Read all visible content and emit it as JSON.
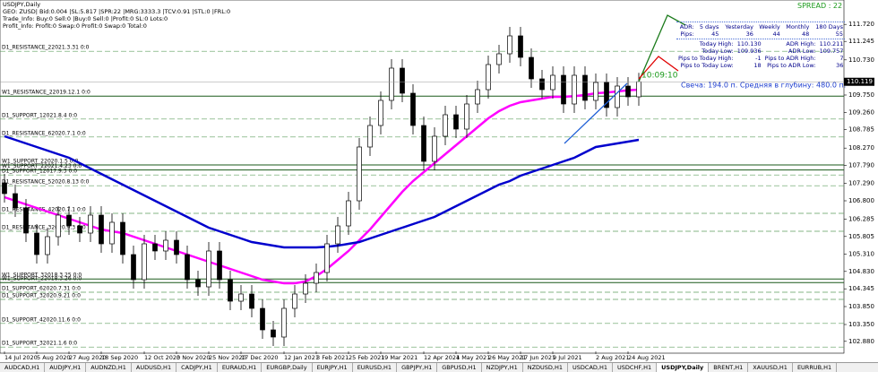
{
  "window_title": "USDJPY,Daily",
  "info_lines": [
    "GEO: ZUSD| Bid:0.004 |SL:5.817 |SPR:22 |MRG:3333.3 |TCV:0.91 |STL:0 |FRL:0",
    "Trade_Info: Buy:0 Sell:0 |Buy:0 Sell:0 |Profit:0 SL:0 Lots:0",
    "Profit_Info: Profit:0 Swap:0 Profit:0 Swap:0 Total:0"
  ],
  "spread": "SPREAD : 22",
  "adr_table": {
    "header": [
      "ADR:",
      "5 days",
      "Yesterday",
      "Weekly",
      "Monthly",
      "180 Days"
    ],
    "row": [
      "Pips:",
      "45",
      "36",
      "44",
      "48",
      "55"
    ]
  },
  "stats": [
    [
      "Today High:",
      "110.130",
      "ADR High:",
      "110.211"
    ],
    [
      "Today Low:",
      "109.936",
      "ADR Low:",
      "109.757"
    ],
    [
      "Pips to Today High:",
      "-1",
      "Pips to ADR High:",
      "7"
    ],
    [
      "Pips to Today Low:",
      "18",
      "Pips to ADR Low:",
      "36"
    ]
  ],
  "timer": "10:09:10",
  "candle_info": "Свеча: 194.0 п. Средняя в глубину: 480.0 п.",
  "chart_data": {
    "type": "candlestick",
    "categories": [
      "14 Jul 2020",
      null,
      null,
      "5 Aug 2020",
      null,
      null,
      "27 Aug 2020",
      null,
      null,
      "18 Sep 2020",
      null,
      null,
      null,
      "12 Oct 2020",
      null,
      null,
      "3 Nov 2020",
      null,
      null,
      "25 Nov 2020",
      null,
      null,
      "17 Dec 2020",
      null,
      null,
      null,
      "12 Jan 2021",
      null,
      null,
      "3 Feb 2021",
      null,
      null,
      "25 Feb 2021",
      null,
      null,
      "19 Mar 2021",
      null,
      null,
      null,
      "12 Apr 2021",
      null,
      null,
      "4 May 2021",
      null,
      null,
      "26 May 2021",
      null,
      null,
      "17 Jun 2021",
      null,
      null,
      "9 Jul 2021",
      null,
      null,
      null,
      "2 Aug 2021",
      null,
      null,
      "24 Aug 2021",
      null
    ],
    "open": [
      107.3,
      107.0,
      106.6,
      105.9,
      105.3,
      105.8,
      106.4,
      106.1,
      105.9,
      106.4,
      105.6,
      106.2,
      105.3,
      104.6,
      105.6,
      105.4,
      105.7,
      105.3,
      104.6,
      104.4,
      105.4,
      104.6,
      104.0,
      104.2,
      103.8,
      103.2,
      103.0,
      103.8,
      104.2,
      104.5,
      104.8,
      105.6,
      106.1,
      106.8,
      108.3,
      108.9,
      109.6,
      110.5,
      109.8,
      108.9,
      107.9,
      108.6,
      109.2,
      108.8,
      109.5,
      109.9,
      110.6,
      110.9,
      111.4,
      110.8,
      110.2,
      109.9,
      110.3,
      109.5,
      110.3,
      109.6,
      110.1,
      109.4,
      110.0,
      109.7
    ],
    "high": [
      107.55,
      107.25,
      106.85,
      106.15,
      106.05,
      106.65,
      106.65,
      106.35,
      106.65,
      106.65,
      106.45,
      106.45,
      105.55,
      105.85,
      105.85,
      105.95,
      105.95,
      105.55,
      104.85,
      105.65,
      105.65,
      104.85,
      104.45,
      104.45,
      104.05,
      103.45,
      104.05,
      104.45,
      104.75,
      105.05,
      105.85,
      106.35,
      107.05,
      108.55,
      109.15,
      109.85,
      110.75,
      110.75,
      110.05,
      109.15,
      108.85,
      109.45,
      109.45,
      109.75,
      110.15,
      110.85,
      111.15,
      111.65,
      111.65,
      111.05,
      110.45,
      110.55,
      110.55,
      110.55,
      110.55,
      110.35,
      110.35,
      110.25,
      110.25,
      110.37
    ],
    "low": [
      106.75,
      106.35,
      105.65,
      105.05,
      105.05,
      105.55,
      105.85,
      105.65,
      105.65,
      105.35,
      105.35,
      105.05,
      104.35,
      104.35,
      105.15,
      105.15,
      105.05,
      104.35,
      104.15,
      104.15,
      104.35,
      103.75,
      103.75,
      103.55,
      102.95,
      102.75,
      102.75,
      103.55,
      103.95,
      104.25,
      104.55,
      105.35,
      105.85,
      106.55,
      108.05,
      108.65,
      109.35,
      109.55,
      108.65,
      107.65,
      107.65,
      108.35,
      108.55,
      108.55,
      109.25,
      109.65,
      110.35,
      110.65,
      110.55,
      109.95,
      109.65,
      109.65,
      109.25,
      109.25,
      109.35,
      109.35,
      109.15,
      109.15,
      109.45,
      109.45
    ],
    "close": [
      107.0,
      106.6,
      105.9,
      105.3,
      105.8,
      106.4,
      106.1,
      105.9,
      106.4,
      105.6,
      106.2,
      105.3,
      104.6,
      105.6,
      105.4,
      105.7,
      105.3,
      104.6,
      104.4,
      105.4,
      104.6,
      104.0,
      104.2,
      103.8,
      103.2,
      103.0,
      103.8,
      104.2,
      104.5,
      104.8,
      105.6,
      106.1,
      106.8,
      108.3,
      108.9,
      109.6,
      110.5,
      109.8,
      108.9,
      107.9,
      108.6,
      109.2,
      108.8,
      109.5,
      109.9,
      110.6,
      110.9,
      111.4,
      110.8,
      110.2,
      109.9,
      110.3,
      109.5,
      110.3,
      109.6,
      110.1,
      109.4,
      110.0,
      109.7,
      110.12
    ],
    "series": [
      {
        "color": "#ff00ff",
        "values": [
          106.9,
          106.8,
          106.7,
          106.6,
          106.5,
          106.4,
          106.3,
          106.2,
          106.1,
          106.0,
          105.95,
          105.9,
          105.8,
          105.7,
          105.6,
          105.5,
          105.4,
          105.3,
          105.2,
          105.1,
          105.0,
          104.9,
          104.8,
          104.7,
          104.6,
          104.55,
          104.5,
          104.5,
          104.55,
          104.7,
          104.9,
          105.15,
          105.4,
          105.7,
          106.0,
          106.35,
          106.7,
          107.05,
          107.35,
          107.6,
          107.85,
          108.1,
          108.35,
          108.6,
          108.85,
          109.1,
          109.3,
          109.45,
          109.55,
          109.6,
          109.65,
          109.7,
          109.7,
          109.72,
          109.75,
          109.8,
          109.82,
          109.85,
          109.88,
          109.9
        ]
      },
      {
        "color": "#0000cd",
        "values": [
          108.6,
          108.5,
          108.4,
          108.3,
          108.2,
          108.1,
          108.0,
          107.85,
          107.7,
          107.55,
          107.4,
          107.25,
          107.1,
          106.95,
          106.8,
          106.65,
          106.5,
          106.35,
          106.2,
          106.05,
          105.95,
          105.85,
          105.75,
          105.65,
          105.6,
          105.55,
          105.5,
          105.5,
          105.5,
          105.5,
          105.52,
          105.55,
          105.6,
          105.65,
          105.75,
          105.85,
          105.95,
          106.05,
          106.15,
          106.25,
          106.35,
          106.5,
          106.65,
          106.8,
          106.95,
          107.1,
          107.25,
          107.35,
          107.5,
          107.6,
          107.7,
          107.8,
          107.9,
          108.0,
          108.15,
          108.3,
          108.35,
          108.4,
          108.45,
          108.5
        ]
      }
    ],
    "levels": [
      {
        "label": "D1_RESISTANCE_22021.3.31 0:0",
        "price": 110.97,
        "style": "dashed"
      },
      {
        "label": "W1_RESISTANCE_22019.12.1 0:0",
        "price": 109.72,
        "style": "solid"
      },
      {
        "label": "D1_SUPPORT_12021.8.4 0:0",
        "price": 109.08,
        "style": "dashed"
      },
      {
        "label": "D1_RESISTANCE_62020.7.1 0:0",
        "price": 108.58,
        "style": "dashed"
      },
      {
        "label": "W1_SUPPORT_22020.1.5 0:0",
        "price": 107.8,
        "style": "solid"
      },
      {
        "label": "W1_SUPPORT_22021.4.23 0:0",
        "price": 107.66,
        "style": "solid"
      },
      {
        "label": "D1_SUPPORT_12017.9.3 0:0",
        "price": 107.52,
        "style": "dashed"
      },
      {
        "label": "D1_RESISTANCE_52020.8.13 0:0",
        "price": 107.22,
        "style": "dashed"
      },
      {
        "label": "D1_RESISTANCE_42020.7.1 0:0",
        "price": 106.45,
        "style": "dashed"
      },
      {
        "label": "D1_RESISTANCE_32020.9.3 0:0",
        "price": 105.95,
        "style": "dashed"
      },
      {
        "label": "W1_SUPPORT_32018.3.25 0:0",
        "price": 104.62,
        "style": "solid"
      },
      {
        "label": "W1_SUPPORT_22018.3.26 0:0",
        "price": 104.52,
        "style": "solid"
      },
      {
        "label": "D1_SUPPORT_62020.7.31 0:0",
        "price": 104.25,
        "style": "dashed"
      },
      {
        "label": "D1_SUPPORT_32020.9.21 0:0",
        "price": 104.05,
        "style": "dashed"
      },
      {
        "label": "D1_SUPPORT_42020.11.6 0:0",
        "price": 103.38,
        "style": "dashed"
      },
      {
        "label": "D1_SUPPORT_32021.1.6 0:0",
        "price": 102.72,
        "style": "dashed"
      }
    ],
    "last_price": 110.119,
    "ylim": [
      102.6,
      112.4
    ],
    "yticks": [
      {
        "value": 111.72,
        "label": "111.720"
      },
      111.245,
      {
        "value": 110.73,
        "label": "110.730"
      },
      {
        "value": 109.75,
        "label": "109.750"
      },
      {
        "value": 109.26,
        "label": "109.260"
      },
      108.785,
      {
        "value": 108.27,
        "label": "108.270"
      },
      {
        "value": 107.79,
        "label": "107.790"
      },
      {
        "value": 107.29,
        "label": "107.290"
      },
      {
        "value": 106.8,
        "label": "106.800"
      },
      106.285,
      105.805,
      {
        "value": 105.31,
        "label": "105.310"
      },
      {
        "value": 104.83,
        "label": "104.830"
      },
      104.345,
      {
        "value": 103.85,
        "label": "103.850"
      },
      {
        "value": 103.35,
        "label": "103.350"
      },
      {
        "value": 102.88,
        "label": "102.880"
      }
    ]
  },
  "tabs": [
    "AUDCAD,H1",
    "AUDJPY,H1",
    "AUDNZD,H1",
    "AUDUSD,H1",
    "CADJPY,H1",
    "EURAUD,H1",
    "EURGBP,Daily",
    "EURJPY,H1",
    "EURUSD,H1",
    "GBPJPY,H1",
    "GBPUSD,H1",
    "NZDJPY,H1",
    "NZDUSD,H1",
    "USDCAD,H1",
    "USDCHF,H1",
    "USDJPY,Daily",
    "BRENT,H1",
    "XAUUSD,H1",
    "EURRUB,H1"
  ],
  "active_tab": 15
}
